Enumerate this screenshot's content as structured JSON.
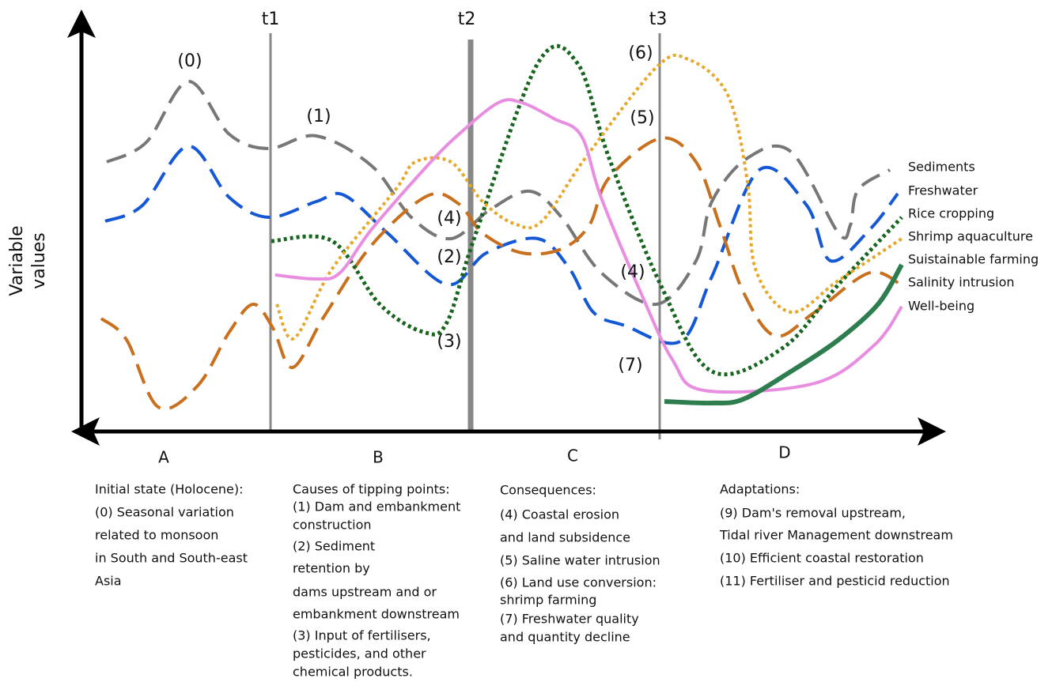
{
  "axes": {
    "y_label": [
      "Variable",
      "values"
    ],
    "time_markers": [
      "t1",
      "t2",
      "t3"
    ]
  },
  "annotations": [
    "(0)",
    "(1)",
    "(4)",
    "(2)",
    "(3)",
    "(4)",
    "(5)",
    "(6)",
    "(7)"
  ],
  "legend": [
    "Sediments",
    "Freshwater",
    "Rice cropping",
    "Shrimp aquaculture",
    "Suistainable farming",
    "Salinity intrusion",
    "Well-being"
  ],
  "phases": [
    {
      "letter": "A",
      "lines": [
        "Initial state (Holocene):",
        "(0) Seasonal variation",
        "related to monsoon",
        "in South and South-east",
        "Asia"
      ]
    },
    {
      "letter": "B",
      "lines": [
        "Causes of tipping points:",
        "(1) Dam and embankment",
        "construction",
        "(2) Sediment",
        "retention by",
        "dams upstream and or",
        "embankment downstream",
        "(3) Input of fertilisers,",
        "pesticides, and other",
        "chemical products."
      ]
    },
    {
      "letter": "C",
      "lines": [
        "Consequences:",
        "(4) Coastal erosion",
        "and land subsidence",
        "(5) Saline water intrusion",
        "(6) Land use conversion:",
        "shrimp farming",
        "(7) Freshwater quality",
        "and quantity decline"
      ]
    },
    {
      "letter": "D",
      "lines": [
        "Adaptations:",
        "(9) Dam's removal upstream,",
        "Tidal river Management downstream",
        "(10) Efficient coastal restoration",
        "(11) Fertiliser and pesticid reduction"
      ]
    }
  ]
}
